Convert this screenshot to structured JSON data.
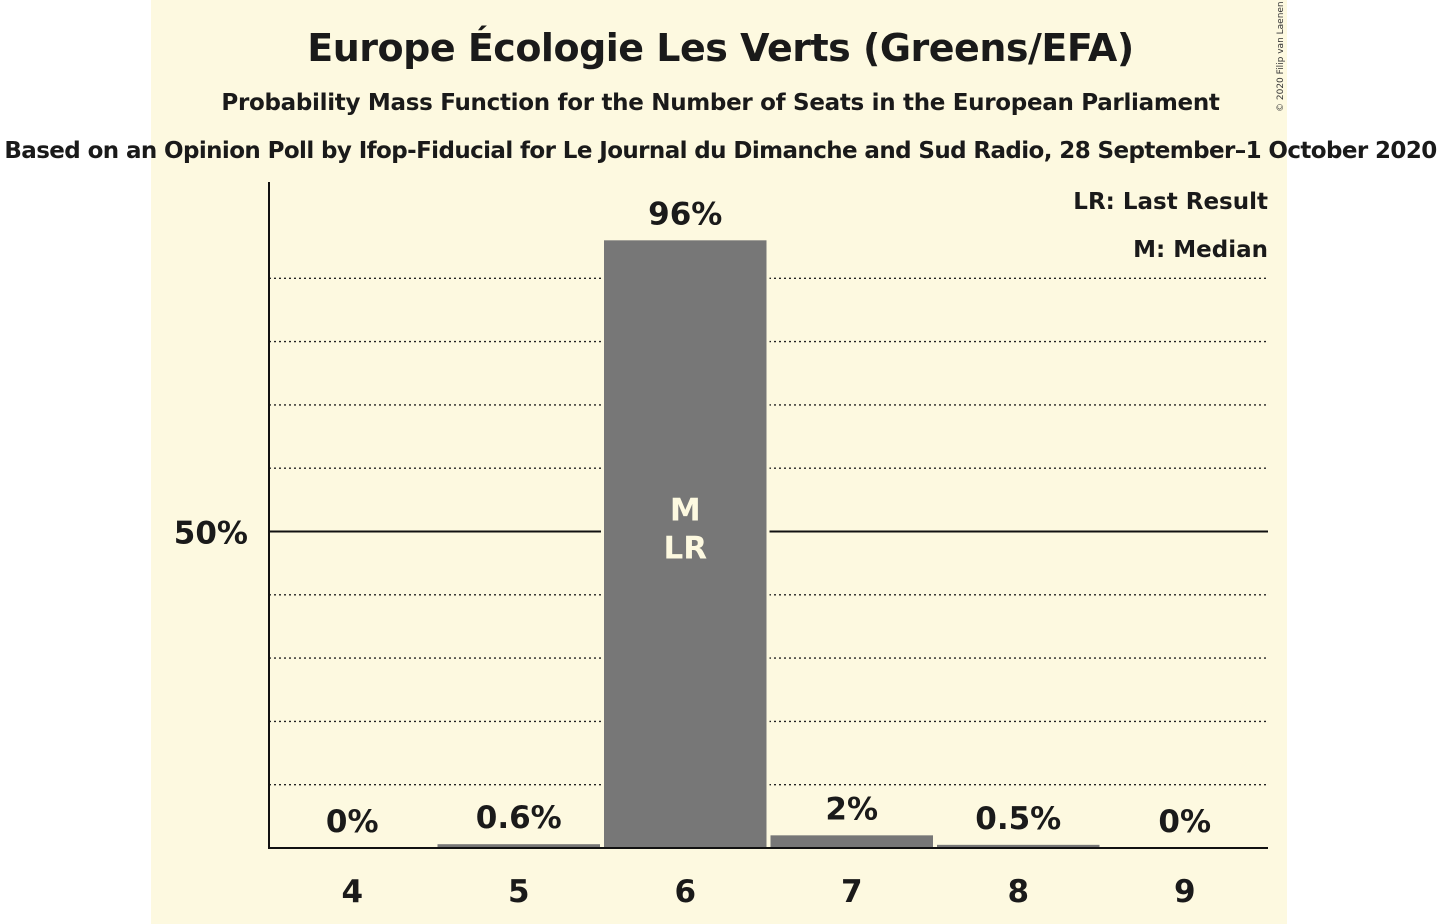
{
  "header": {
    "title": "Europe Écologie Les Verts (Greens/EFA)",
    "subtitle": "Probability Mass Function for the Number of Seats in the European Parliament",
    "source": "Based on an Opinion Poll by Ifop-Fiducial for Le Journal du Dimanche and Sud Radio, 28 September–1 October 2020",
    "copyright": "© 2020 Filip van Laenen"
  },
  "legend": {
    "last_result": "LR: Last Result",
    "median": "M: Median"
  },
  "colors": {
    "background": "#fdf9e0",
    "bar": "#777777",
    "text": "#1a1a1a",
    "marker_text": "#fdf9e0"
  },
  "chart_data": {
    "type": "bar",
    "categories": [
      "4",
      "5",
      "6",
      "7",
      "8",
      "9"
    ],
    "values": [
      0,
      0.6,
      96,
      2,
      0.5,
      0
    ],
    "value_labels": [
      "0%",
      "0.6%",
      "96%",
      "2%",
      "0.5%",
      "0%"
    ],
    "ylim": [
      0,
      100
    ],
    "y_ticks": [
      {
        "value": 50,
        "label": "50%"
      }
    ],
    "gridlines_every": 10,
    "bar_markers": [
      {
        "category": "6",
        "labels": [
          "M",
          "LR"
        ]
      }
    ],
    "legend_placement": "top-right",
    "title": "Europe Écologie Les Verts (Greens/EFA)",
    "xlabel": "",
    "ylabel": ""
  }
}
